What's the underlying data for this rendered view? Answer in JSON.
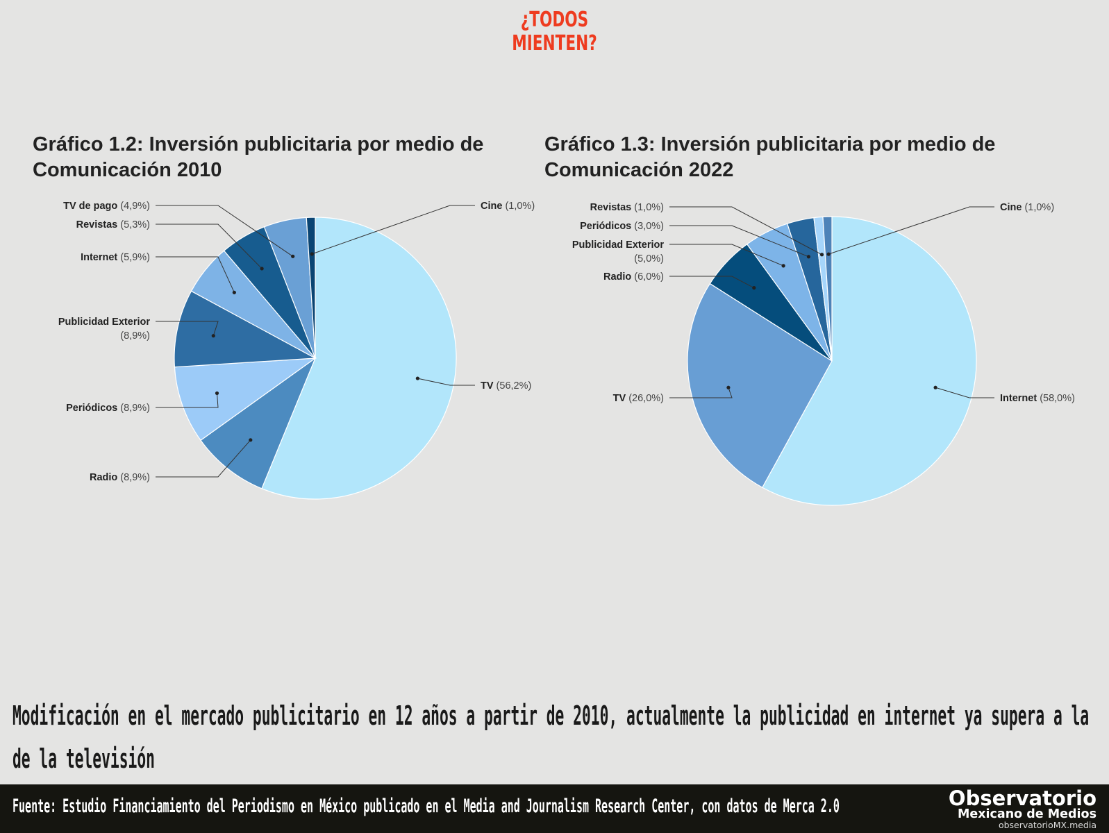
{
  "brand": {
    "line1": "¿TODOS",
    "line2": "MIENTEN?"
  },
  "chart_data": [
    {
      "type": "pie",
      "title": "Gráfico 1.2: Inversión publicitaria por medio de Comunicación 2010",
      "slices": [
        {
          "label": "TV",
          "value": 56.2,
          "value_text": "(56,2%)",
          "color": "#b2e6fb"
        },
        {
          "label": "Radio",
          "value": 8.9,
          "value_text": "(8,9%)",
          "color": "#4c8bc0"
        },
        {
          "label": "Periódicos",
          "value": 8.9,
          "value_text": "(8,9%)",
          "color": "#9ccbf8"
        },
        {
          "label": "Publicidad Exterior",
          "value": 8.9,
          "value_text": "(8,9%)",
          "color": "#2e6da3"
        },
        {
          "label": "Internet",
          "value": 5.9,
          "value_text": "(5,9%)",
          "color": "#7eb3e6"
        },
        {
          "label": "Revistas",
          "value": 5.3,
          "value_text": "(5,3%)",
          "color": "#175c8f"
        },
        {
          "label": "TV de pago",
          "value": 4.9,
          "value_text": "(4,9%)",
          "color": "#6aa0d5"
        },
        {
          "label": "Cine",
          "value": 1.0,
          "value_text": "(1,0%)",
          "color": "#0a4472"
        }
      ]
    },
    {
      "type": "pie",
      "title": "Gráfico 1.3: Inversión publicitaria por medio de Comunicación 2022",
      "slices": [
        {
          "label": "Internet",
          "value": 58.0,
          "value_text": "(58,0%)",
          "color": "#b2e6fb"
        },
        {
          "label": "TV",
          "value": 26.0,
          "value_text": "(26,0%)",
          "color": "#689ed4"
        },
        {
          "label": "Radio",
          "value": 6.0,
          "value_text": "(6,0%)",
          "color": "#054d7c"
        },
        {
          "label": "Publicidad Exterior",
          "value": 5.0,
          "value_text": "(5,0%)",
          "color": "#7db4e8"
        },
        {
          "label": "Periódicos",
          "value": 3.0,
          "value_text": "(3,0%)",
          "color": "#26669c"
        },
        {
          "label": "Revistas",
          "value": 1.0,
          "value_text": "(1,0%)",
          "color": "#a6d5fb"
        },
        {
          "label": "Cine",
          "value": 1.0,
          "value_text": "(1,0%)",
          "color": "#4d82b8"
        }
      ]
    }
  ],
  "headline": "Modificación en el mercado publicitario en 12 años a partir de 2010, actualmente la publicidad en internet ya supera a la de la televisión",
  "footer": {
    "source": "Fuente: Estudio Financiamiento del Periodismo en México publicado en el Media and Journalism Research Center, con datos de Merca 2.0",
    "logo_main": "Observatorio",
    "logo_sub": "Mexicano de Medios",
    "logo_url": "observatorioMX.media"
  },
  "colors": {
    "background": "#e4e4e3",
    "brand": "#ee3b1f",
    "footer_bg": "#151510"
  }
}
